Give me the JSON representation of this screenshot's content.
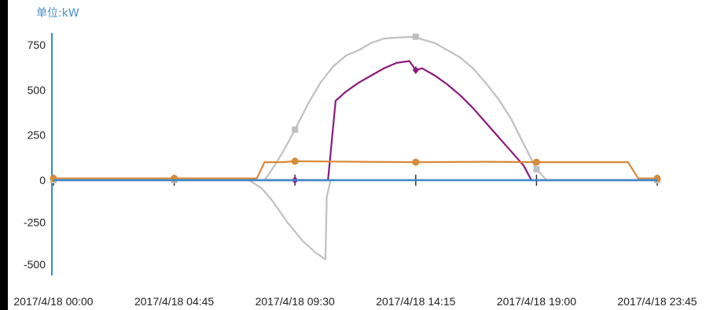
{
  "chart_data": {
    "type": "line",
    "unit_label": "单位:kW",
    "ylim": [
      -550,
      820
    ],
    "y_ticks": [
      750,
      500,
      250,
      0,
      -250,
      -500
    ],
    "y_tick_labels": [
      "750",
      "500",
      "250",
      "0",
      "-250",
      "-500"
    ],
    "x_tick_labels": [
      "2017/4/18 00:00",
      "2017/4/18 04:45",
      "2017/4/18 09:30",
      "2017/4/18 14:15",
      "2017/4/18 19:00",
      "2017/4/18 23:45"
    ],
    "x_tick_hours": [
      0,
      4.75,
      9.5,
      14.25,
      19.0,
      23.75
    ],
    "xlim": [
      0,
      23.75
    ],
    "grid": false,
    "series": [
      {
        "color": "#c0c0c0",
        "marker": "square",
        "marker_x": [
          0,
          4.75,
          9.5,
          14.25,
          19.0,
          23.75
        ],
        "points": [
          [
            0,
            0
          ],
          [
            7.7,
            0
          ],
          [
            8.2,
            -50
          ],
          [
            8.6,
            -120
          ],
          [
            9.2,
            -250
          ],
          [
            9.8,
            -360
          ],
          [
            10.3,
            -430
          ],
          [
            10.7,
            -470
          ],
          [
            10.75,
            -100
          ],
          [
            10.9,
            0
          ],
          [
            9.2,
            0
          ],
          [
            9.1,
            0
          ],
          [
            8.3,
            0
          ],
          [
            8.6,
            60
          ],
          [
            9.0,
            150
          ],
          [
            9.5,
            280
          ],
          [
            10.0,
            420
          ],
          [
            10.5,
            540
          ],
          [
            11.0,
            630
          ],
          [
            11.5,
            690
          ],
          [
            12.0,
            720
          ],
          [
            12.5,
            760
          ],
          [
            13.0,
            785
          ],
          [
            13.5,
            790
          ],
          [
            14.25,
            795
          ],
          [
            14.5,
            780
          ],
          [
            15.0,
            760
          ],
          [
            15.5,
            720
          ],
          [
            16.0,
            680
          ],
          [
            16.5,
            620
          ],
          [
            17.0,
            540
          ],
          [
            17.5,
            450
          ],
          [
            18.0,
            340
          ],
          [
            18.5,
            200
          ],
          [
            19.0,
            60
          ],
          [
            19.4,
            0
          ],
          [
            23.75,
            0
          ]
        ]
      },
      {
        "color": "#8b1a7e",
        "marker": "diamond",
        "marker_x": [
          9.5,
          14.25
        ],
        "points": [
          [
            0,
            0
          ],
          [
            10.8,
            0
          ],
          [
            11.1,
            440
          ],
          [
            11.5,
            490
          ],
          [
            12.0,
            540
          ],
          [
            12.5,
            580
          ],
          [
            13.0,
            620
          ],
          [
            13.5,
            650
          ],
          [
            14.0,
            660
          ],
          [
            14.25,
            610
          ],
          [
            14.5,
            620
          ],
          [
            15.0,
            580
          ],
          [
            15.5,
            530
          ],
          [
            16.0,
            470
          ],
          [
            16.5,
            400
          ],
          [
            17.0,
            320
          ],
          [
            17.5,
            240
          ],
          [
            18.0,
            160
          ],
          [
            18.5,
            80
          ],
          [
            18.8,
            0
          ],
          [
            23.75,
            0
          ]
        ]
      },
      {
        "color": "#d8893a",
        "marker": "circle",
        "marker_x": [
          0,
          4.75,
          9.5,
          14.25,
          19.0,
          23.75
        ],
        "points": [
          [
            0,
            10
          ],
          [
            8.0,
            10
          ],
          [
            8.3,
            100
          ],
          [
            9.0,
            100
          ],
          [
            9.5,
            105
          ],
          [
            12.0,
            102
          ],
          [
            14.25,
            100
          ],
          [
            17.0,
            102
          ],
          [
            19.0,
            100
          ],
          [
            22.4,
            100
          ],
          [
            22.6,
            100
          ],
          [
            23.0,
            10
          ],
          [
            23.75,
            10
          ]
        ]
      },
      {
        "color": "#3a8ac8",
        "marker": "none",
        "marker_x": [],
        "points": [
          [
            0,
            0
          ],
          [
            23.75,
            0
          ]
        ]
      }
    ]
  }
}
